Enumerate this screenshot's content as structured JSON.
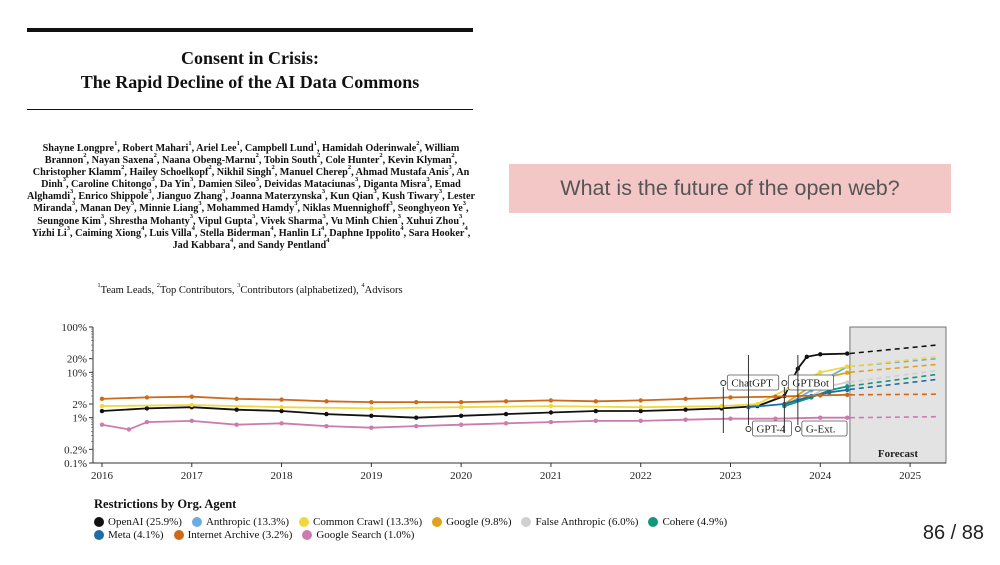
{
  "paper": {
    "title_line1": "Consent in Crisis:",
    "title_line2": "The Rapid Decline of the AI Data Commons",
    "authors": [
      {
        "name": "Shayne Longpre",
        "sup": "1"
      },
      {
        "name": "Robert Mahari",
        "sup": "1"
      },
      {
        "name": "Ariel Lee",
        "sup": "1"
      },
      {
        "name": "Campbell Lund",
        "sup": "1"
      },
      {
        "name": "Hamidah Oderinwale",
        "sup": "2"
      },
      {
        "name": "William Brannon",
        "sup": "2"
      },
      {
        "name": "Nayan Saxena",
        "sup": "2"
      },
      {
        "name": "Naana Obeng-Marnu",
        "sup": "2"
      },
      {
        "name": "Tobin South",
        "sup": "2"
      },
      {
        "name": "Cole Hunter",
        "sup": "2"
      },
      {
        "name": "Kevin Klyman",
        "sup": "2"
      },
      {
        "name": "Christopher Klamm",
        "sup": "2"
      },
      {
        "name": "Hailey Schoelkopf",
        "sup": "2"
      },
      {
        "name": "Nikhil Singh",
        "sup": "2"
      },
      {
        "name": "Manuel Cherep",
        "sup": "2"
      },
      {
        "name": "Ahmad Mustafa Anis",
        "sup": "3"
      },
      {
        "name": "An Dinh",
        "sup": "3"
      },
      {
        "name": "Caroline Chitongo",
        "sup": "3"
      },
      {
        "name": "Da Yin",
        "sup": "3"
      },
      {
        "name": "Damien Sileo",
        "sup": "3"
      },
      {
        "name": "Deividas Mataciunas",
        "sup": "3"
      },
      {
        "name": "Diganta Misra",
        "sup": "3"
      },
      {
        "name": "Emad Alghamdi",
        "sup": "3"
      },
      {
        "name": "Enrico Shippole",
        "sup": "3"
      },
      {
        "name": "Jianguo Zhang",
        "sup": "3"
      },
      {
        "name": "Joanna Materzynska",
        "sup": "3"
      },
      {
        "name": "Kun Qian",
        "sup": "3"
      },
      {
        "name": "Kush Tiwary",
        "sup": "3"
      },
      {
        "name": "Lester Miranda",
        "sup": "3"
      },
      {
        "name": "Manan Dey",
        "sup": "3"
      },
      {
        "name": "Minnie Liang",
        "sup": "3"
      },
      {
        "name": "Mohammed Hamdy",
        "sup": "3"
      },
      {
        "name": "Niklas Muennighoff",
        "sup": "3"
      },
      {
        "name": "Seonghyeon Ye",
        "sup": "3"
      },
      {
        "name": "Seungone Kim",
        "sup": "3"
      },
      {
        "name": "Shrestha Mohanty",
        "sup": "3"
      },
      {
        "name": "Vipul Gupta",
        "sup": "3"
      },
      {
        "name": "Vivek Sharma",
        "sup": "3"
      },
      {
        "name": "Vu Minh Chien",
        "sup": "3"
      },
      {
        "name": "Xuhui Zhou",
        "sup": "3"
      },
      {
        "name": "Yizhi Li",
        "sup": "3"
      },
      {
        "name": "Caiming Xiong",
        "sup": "4"
      },
      {
        "name": "Luis Villa",
        "sup": "4"
      },
      {
        "name": "Stella Biderman",
        "sup": "4"
      },
      {
        "name": "Hanlin Li",
        "sup": "4"
      },
      {
        "name": "Daphne Ippolito",
        "sup": "4"
      },
      {
        "name": "Sara Hooker",
        "sup": "4"
      },
      {
        "name": "Jad Kabbara",
        "sup": "4"
      },
      {
        "name": "Sandy Pentland",
        "sup": "4"
      }
    ],
    "affiliations": [
      {
        "sup": "1",
        "label": "Team Leads"
      },
      {
        "sup": "2",
        "label": "Top Contributors"
      },
      {
        "sup": "3",
        "label": "Contributors (alphabetized)"
      },
      {
        "sup": "4",
        "label": "Advisors"
      }
    ]
  },
  "slide": {
    "question": "What is the future of the open web?",
    "page_number": "86 / 88"
  },
  "chart_data": {
    "type": "line",
    "y_scale": "log",
    "y_ticks": [
      "0.1%",
      "0.2%",
      "1%",
      "2%",
      "10%",
      "20%",
      "100%"
    ],
    "x_ticks": [
      "2016",
      "2017",
      "2018",
      "2019",
      "2020",
      "2021",
      "2022",
      "2023",
      "2024",
      "2025"
    ],
    "x_range": [
      2015.9,
      2025.4
    ],
    "forecast_start": 2024.33,
    "forecast_label": "Forecast",
    "annotations": [
      {
        "label": "ChatGPT",
        "x": 2022.92
      },
      {
        "label": "GPT-4",
        "x": 2023.2
      },
      {
        "label": "GPTBot",
        "x": 2023.6
      },
      {
        "label": "G-Ext.",
        "x": 2023.75
      }
    ],
    "legend_title": "Restrictions by Org. Agent",
    "series": [
      {
        "name": "OpenAI (25.9%)",
        "color": "#111111",
        "values": [
          [
            2016,
            1.4
          ],
          [
            2016.5,
            1.6
          ],
          [
            2017,
            1.7
          ],
          [
            2017.5,
            1.5
          ],
          [
            2018,
            1.4
          ],
          [
            2018.5,
            1.2
          ],
          [
            2019,
            1.1
          ],
          [
            2019.5,
            1.0
          ],
          [
            2020,
            1.1
          ],
          [
            2020.5,
            1.2
          ],
          [
            2021,
            1.3
          ],
          [
            2021.5,
            1.4
          ],
          [
            2022,
            1.4
          ],
          [
            2022.5,
            1.5
          ],
          [
            2022.9,
            1.6
          ],
          [
            2023.3,
            1.8
          ],
          [
            2023.6,
            3.0
          ],
          [
            2023.75,
            12
          ],
          [
            2023.85,
            22
          ],
          [
            2024,
            25
          ],
          [
            2024.3,
            25.9
          ]
        ],
        "forecast": [
          [
            2024.33,
            26
          ],
          [
            2025.3,
            40
          ]
        ]
      },
      {
        "name": "Anthropic (13.3%)",
        "color": "#6aaee0",
        "values": [
          [
            2023.6,
            1.8
          ],
          [
            2023.9,
            4
          ],
          [
            2024.1,
            8
          ],
          [
            2024.3,
            13.3
          ]
        ],
        "forecast": [
          [
            2024.33,
            13.5
          ],
          [
            2025.3,
            20
          ]
        ]
      },
      {
        "name": "Common Crawl (13.3%)",
        "color": "#f0d83c",
        "values": [
          [
            2016,
            1.8
          ],
          [
            2017,
            1.9
          ],
          [
            2018,
            1.7
          ],
          [
            2019,
            1.6
          ],
          [
            2020,
            1.7
          ],
          [
            2021,
            1.8
          ],
          [
            2022,
            1.7
          ],
          [
            2022.9,
            1.8
          ],
          [
            2023.3,
            2.0
          ],
          [
            2023.7,
            5
          ],
          [
            2024,
            10
          ],
          [
            2024.3,
            13.3
          ]
        ],
        "forecast": [
          [
            2024.33,
            13.5
          ],
          [
            2025.3,
            22
          ]
        ]
      },
      {
        "name": "Google (9.8%)",
        "color": "#e0a21c",
        "values": [
          [
            2023.6,
            2.0
          ],
          [
            2023.9,
            5
          ],
          [
            2024.1,
            8
          ],
          [
            2024.3,
            9.8
          ]
        ],
        "forecast": [
          [
            2024.33,
            10
          ],
          [
            2025.3,
            15
          ]
        ]
      },
      {
        "name": "False Anthropic (6.0%)",
        "color": "#cfcfcf",
        "values": [
          [
            2023.6,
            1.9
          ],
          [
            2023.9,
            3
          ],
          [
            2024.1,
            5
          ],
          [
            2024.3,
            6.0
          ]
        ],
        "forecast": [
          [
            2024.33,
            6.1
          ],
          [
            2025.3,
            11
          ]
        ]
      },
      {
        "name": "Cohere (4.9%)",
        "color": "#12977a",
        "values": [
          [
            2023.6,
            1.8
          ],
          [
            2023.9,
            2.8
          ],
          [
            2024.1,
            4
          ],
          [
            2024.3,
            4.9
          ]
        ],
        "forecast": [
          [
            2024.33,
            5
          ],
          [
            2025.3,
            9
          ]
        ]
      },
      {
        "name": "Meta (4.1%)",
        "color": "#1d6ea6",
        "values": [
          [
            2023.2,
            1.7
          ],
          [
            2023.6,
            2.0
          ],
          [
            2023.9,
            3
          ],
          [
            2024.1,
            3.6
          ],
          [
            2024.3,
            4.1
          ]
        ],
        "forecast": [
          [
            2024.33,
            4.2
          ],
          [
            2025.3,
            7
          ]
        ]
      },
      {
        "name": "Internet Archive (3.2%)",
        "color": "#cc6a1a",
        "values": [
          [
            2016,
            2.6
          ],
          [
            2016.5,
            2.8
          ],
          [
            2017,
            2.9
          ],
          [
            2017.5,
            2.6
          ],
          [
            2018,
            2.5
          ],
          [
            2018.5,
            2.3
          ],
          [
            2019,
            2.2
          ],
          [
            2019.5,
            2.2
          ],
          [
            2020,
            2.2
          ],
          [
            2020.5,
            2.3
          ],
          [
            2021,
            2.4
          ],
          [
            2021.5,
            2.3
          ],
          [
            2022,
            2.4
          ],
          [
            2022.5,
            2.6
          ],
          [
            2023,
            2.8
          ],
          [
            2023.5,
            2.9
          ],
          [
            2024,
            3.1
          ],
          [
            2024.3,
            3.2
          ]
        ],
        "forecast": [
          [
            2024.33,
            3.2
          ],
          [
            2025.3,
            3.3
          ]
        ]
      },
      {
        "name": "Google Search (1.0%)",
        "color": "#cc7ab0",
        "values": [
          [
            2016,
            0.7
          ],
          [
            2016.3,
            0.55
          ],
          [
            2016.5,
            0.8
          ],
          [
            2017,
            0.85
          ],
          [
            2017.5,
            0.7
          ],
          [
            2018,
            0.75
          ],
          [
            2018.5,
            0.65
          ],
          [
            2019,
            0.6
          ],
          [
            2019.5,
            0.65
          ],
          [
            2020,
            0.7
          ],
          [
            2020.5,
            0.75
          ],
          [
            2021,
            0.8
          ],
          [
            2021.5,
            0.85
          ],
          [
            2022,
            0.85
          ],
          [
            2022.5,
            0.9
          ],
          [
            2023,
            0.95
          ],
          [
            2023.5,
            0.95
          ],
          [
            2024,
            1.0
          ],
          [
            2024.3,
            1.0
          ]
        ],
        "forecast": [
          [
            2024.33,
            1.0
          ],
          [
            2025.3,
            1.05
          ]
        ]
      }
    ]
  }
}
